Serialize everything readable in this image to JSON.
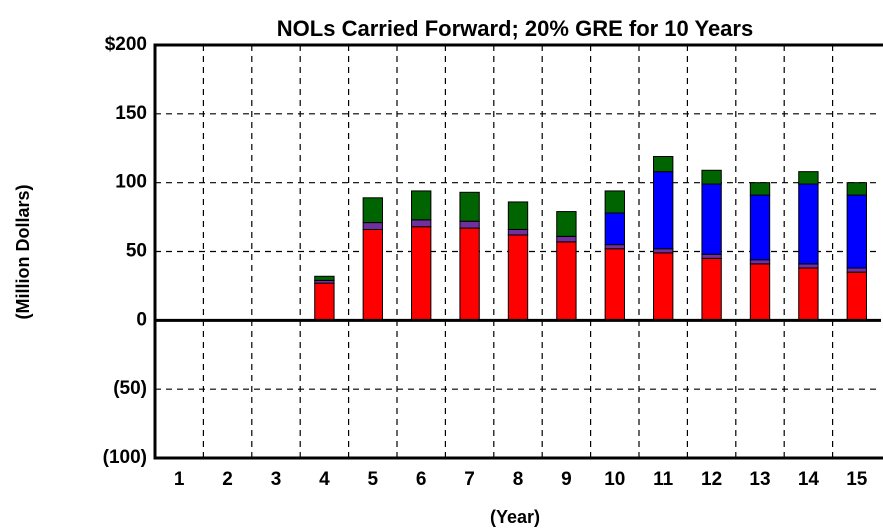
{
  "chart_data": {
    "type": "stacked_bar",
    "title": "NOLs Carried Forward; 20% GRE for 10 Years",
    "x_label": "(Year)",
    "y_label": "(Million Dollars)",
    "categories": [
      "1",
      "2",
      "3",
      "4",
      "5",
      "6",
      "7",
      "8",
      "9",
      "10",
      "11",
      "12",
      "13",
      "14",
      "15"
    ],
    "series": [
      {
        "color": "#ff0000",
        "values": [
          0,
          0,
          0,
          27,
          66,
          68,
          67,
          62,
          57,
          52,
          49,
          45,
          41,
          38,
          35
        ]
      },
      {
        "color": "#7030a0",
        "values": [
          0,
          0,
          0,
          2,
          5,
          5,
          5,
          4,
          4,
          3,
          3,
          3,
          3,
          3,
          3
        ]
      },
      {
        "color": "#0000ff",
        "values": [
          0,
          0,
          0,
          0,
          0,
          0,
          0,
          0,
          0,
          23,
          56,
          51,
          47,
          58,
          53
        ]
      },
      {
        "color": "#006400",
        "values": [
          0,
          0,
          0,
          3,
          18,
          21,
          21,
          20,
          18,
          16,
          11,
          10,
          9,
          9,
          9
        ]
      }
    ],
    "ylim": [
      -100,
      200
    ],
    "yticks": [
      {
        "value": -100,
        "label": "(100)"
      },
      {
        "value": -50,
        "label": "(50)"
      },
      0,
      50,
      100,
      150,
      {
        "value": 200,
        "label": "$200"
      }
    ],
    "grid": true
  }
}
